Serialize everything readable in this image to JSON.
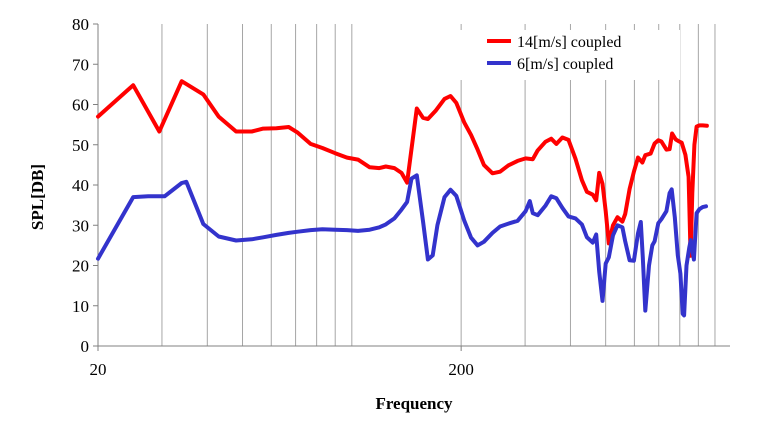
{
  "chart_data": {
    "type": "line",
    "title": "",
    "xlabel": "Frequency",
    "ylabel": "SPL[DB]",
    "x_scale": "log",
    "xlim": [
      20,
      1100
    ],
    "ylim": [
      0,
      80
    ],
    "y_ticks": [
      0,
      10,
      20,
      30,
      40,
      50,
      60,
      70,
      80
    ],
    "x_tick_labels": [
      {
        "value": 20,
        "label": "20"
      },
      {
        "value": 200,
        "label": "200"
      }
    ],
    "grid": {
      "x": true,
      "y": false
    },
    "legend_position": "top-right",
    "series": [
      {
        "name": "14[m/s] coupled",
        "color": "#ff0000",
        "points": [
          [
            20,
            57
          ],
          [
            25,
            64.8
          ],
          [
            29.5,
            53.3
          ],
          [
            34,
            65.8
          ],
          [
            39,
            62.5
          ],
          [
            43,
            57
          ],
          [
            48,
            53.3
          ],
          [
            53,
            53.3
          ],
          [
            57,
            54
          ],
          [
            62,
            54.1
          ],
          [
            67,
            54.4
          ],
          [
            71,
            53
          ],
          [
            77,
            50.2
          ],
          [
            83,
            49.2
          ],
          [
            90,
            47.9
          ],
          [
            97,
            46.8
          ],
          [
            104,
            46.3
          ],
          [
            112,
            44.4
          ],
          [
            119,
            44.2
          ],
          [
            124,
            44.6
          ],
          [
            131,
            44.2
          ],
          [
            137,
            43
          ],
          [
            142,
            40.6
          ],
          [
            151,
            59
          ],
          [
            157,
            56.7
          ],
          [
            162,
            56.4
          ],
          [
            170,
            58.4
          ],
          [
            180,
            61.4
          ],
          [
            187,
            62.1
          ],
          [
            194,
            60.4
          ],
          [
            204,
            55.5
          ],
          [
            213,
            52.4
          ],
          [
            222,
            48.8
          ],
          [
            231,
            45
          ],
          [
            244,
            42.9
          ],
          [
            256,
            43.3
          ],
          [
            270,
            44.9
          ],
          [
            286,
            46
          ],
          [
            301,
            46.6
          ],
          [
            315,
            46.4
          ],
          [
            325,
            48.6
          ],
          [
            341,
            50.7
          ],
          [
            354,
            51.5
          ],
          [
            366,
            50.2
          ],
          [
            380,
            51.8
          ],
          [
            395,
            51.2
          ],
          [
            413,
            46.5
          ],
          [
            430,
            41.2
          ],
          [
            444,
            38.3
          ],
          [
            461,
            37.6
          ],
          [
            471,
            36.2
          ],
          [
            480,
            43
          ],
          [
            490,
            40.3
          ],
          [
            500,
            33.5
          ],
          [
            510,
            25.5
          ],
          [
            524,
            30
          ],
          [
            539,
            32
          ],
          [
            556,
            30.9
          ],
          [
            566,
            32.8
          ],
          [
            582,
            39
          ],
          [
            598,
            43.3
          ],
          [
            614,
            46.8
          ],
          [
            631,
            45.6
          ],
          [
            643,
            47.4
          ],
          [
            665,
            47.8
          ],
          [
            682,
            50.3
          ],
          [
            698,
            51.1
          ],
          [
            712,
            50.8
          ],
          [
            735,
            48.8
          ],
          [
            750,
            48.9
          ],
          [
            762,
            52.8
          ],
          [
            780,
            51.3
          ],
          [
            797,
            50.8
          ],
          [
            810,
            50.5
          ],
          [
            829,
            47.5
          ],
          [
            846,
            42
          ],
          [
            857,
            22.4
          ],
          [
            866,
            38
          ],
          [
            878,
            50
          ],
          [
            890,
            54.5
          ],
          [
            906,
            54.8
          ],
          [
            925,
            54.8
          ],
          [
            950,
            54.7
          ]
        ]
      },
      {
        "name": "6[m/s] coupled",
        "color": "#3333cc",
        "points": [
          [
            20,
            21.7
          ],
          [
            25,
            37
          ],
          [
            27.5,
            37.2
          ],
          [
            30.5,
            37.2
          ],
          [
            34,
            40.5
          ],
          [
            35,
            40.8
          ],
          [
            39,
            30.3
          ],
          [
            43,
            27.2
          ],
          [
            48,
            26.2
          ],
          [
            53,
            26.5
          ],
          [
            57,
            27
          ],
          [
            62,
            27.6
          ],
          [
            67,
            28.1
          ],
          [
            71,
            28.4
          ],
          [
            77,
            28.8
          ],
          [
            83,
            29
          ],
          [
            90,
            28.9
          ],
          [
            97,
            28.8
          ],
          [
            104,
            28.6
          ],
          [
            112,
            28.9
          ],
          [
            119,
            29.5
          ],
          [
            124,
            30.2
          ],
          [
            131,
            31.7
          ],
          [
            137,
            33.9
          ],
          [
            142,
            35.8
          ],
          [
            146,
            41.6
          ],
          [
            151,
            42.4
          ],
          [
            157,
            31
          ],
          [
            162,
            21.5
          ],
          [
            167,
            22.5
          ],
          [
            172,
            30
          ],
          [
            180,
            37
          ],
          [
            187,
            38.8
          ],
          [
            194,
            37.3
          ],
          [
            204,
            31.1
          ],
          [
            213,
            26.9
          ],
          [
            222,
            25
          ],
          [
            231,
            25.9
          ],
          [
            244,
            28.1
          ],
          [
            256,
            29.7
          ],
          [
            270,
            30.4
          ],
          [
            286,
            31.1
          ],
          [
            301,
            33.5
          ],
          [
            309,
            36
          ],
          [
            315,
            33
          ],
          [
            325,
            32.5
          ],
          [
            341,
            34.8
          ],
          [
            354,
            37.2
          ],
          [
            366,
            36.7
          ],
          [
            380,
            34.3
          ],
          [
            395,
            32.2
          ],
          [
            413,
            31.7
          ],
          [
            430,
            30.2
          ],
          [
            444,
            27
          ],
          [
            461,
            25.7
          ],
          [
            471,
            27.7
          ],
          [
            480,
            18.5
          ],
          [
            490,
            11.2
          ],
          [
            500,
            20.5
          ],
          [
            510,
            22
          ],
          [
            524,
            27.5
          ],
          [
            539,
            30
          ],
          [
            556,
            29.5
          ],
          [
            566,
            26
          ],
          [
            582,
            21.3
          ],
          [
            598,
            21.2
          ],
          [
            614,
            28
          ],
          [
            625,
            30.8
          ],
          [
            633,
            22
          ],
          [
            643,
            8.8
          ],
          [
            658,
            20
          ],
          [
            672,
            25
          ],
          [
            682,
            26
          ],
          [
            698,
            30.5
          ],
          [
            712,
            31.5
          ],
          [
            735,
            33.5
          ],
          [
            750,
            38
          ],
          [
            760,
            38.9
          ],
          [
            775,
            32
          ],
          [
            790,
            22.5
          ],
          [
            803,
            18
          ],
          [
            815,
            8
          ],
          [
            822,
            7.6
          ],
          [
            835,
            20
          ],
          [
            850,
            24.5
          ],
          [
            858,
            26.3
          ],
          [
            866,
            24
          ],
          [
            875,
            21.5
          ],
          [
            890,
            33
          ],
          [
            906,
            34
          ],
          [
            925,
            34.5
          ],
          [
            945,
            34.7
          ]
        ]
      }
    ]
  }
}
